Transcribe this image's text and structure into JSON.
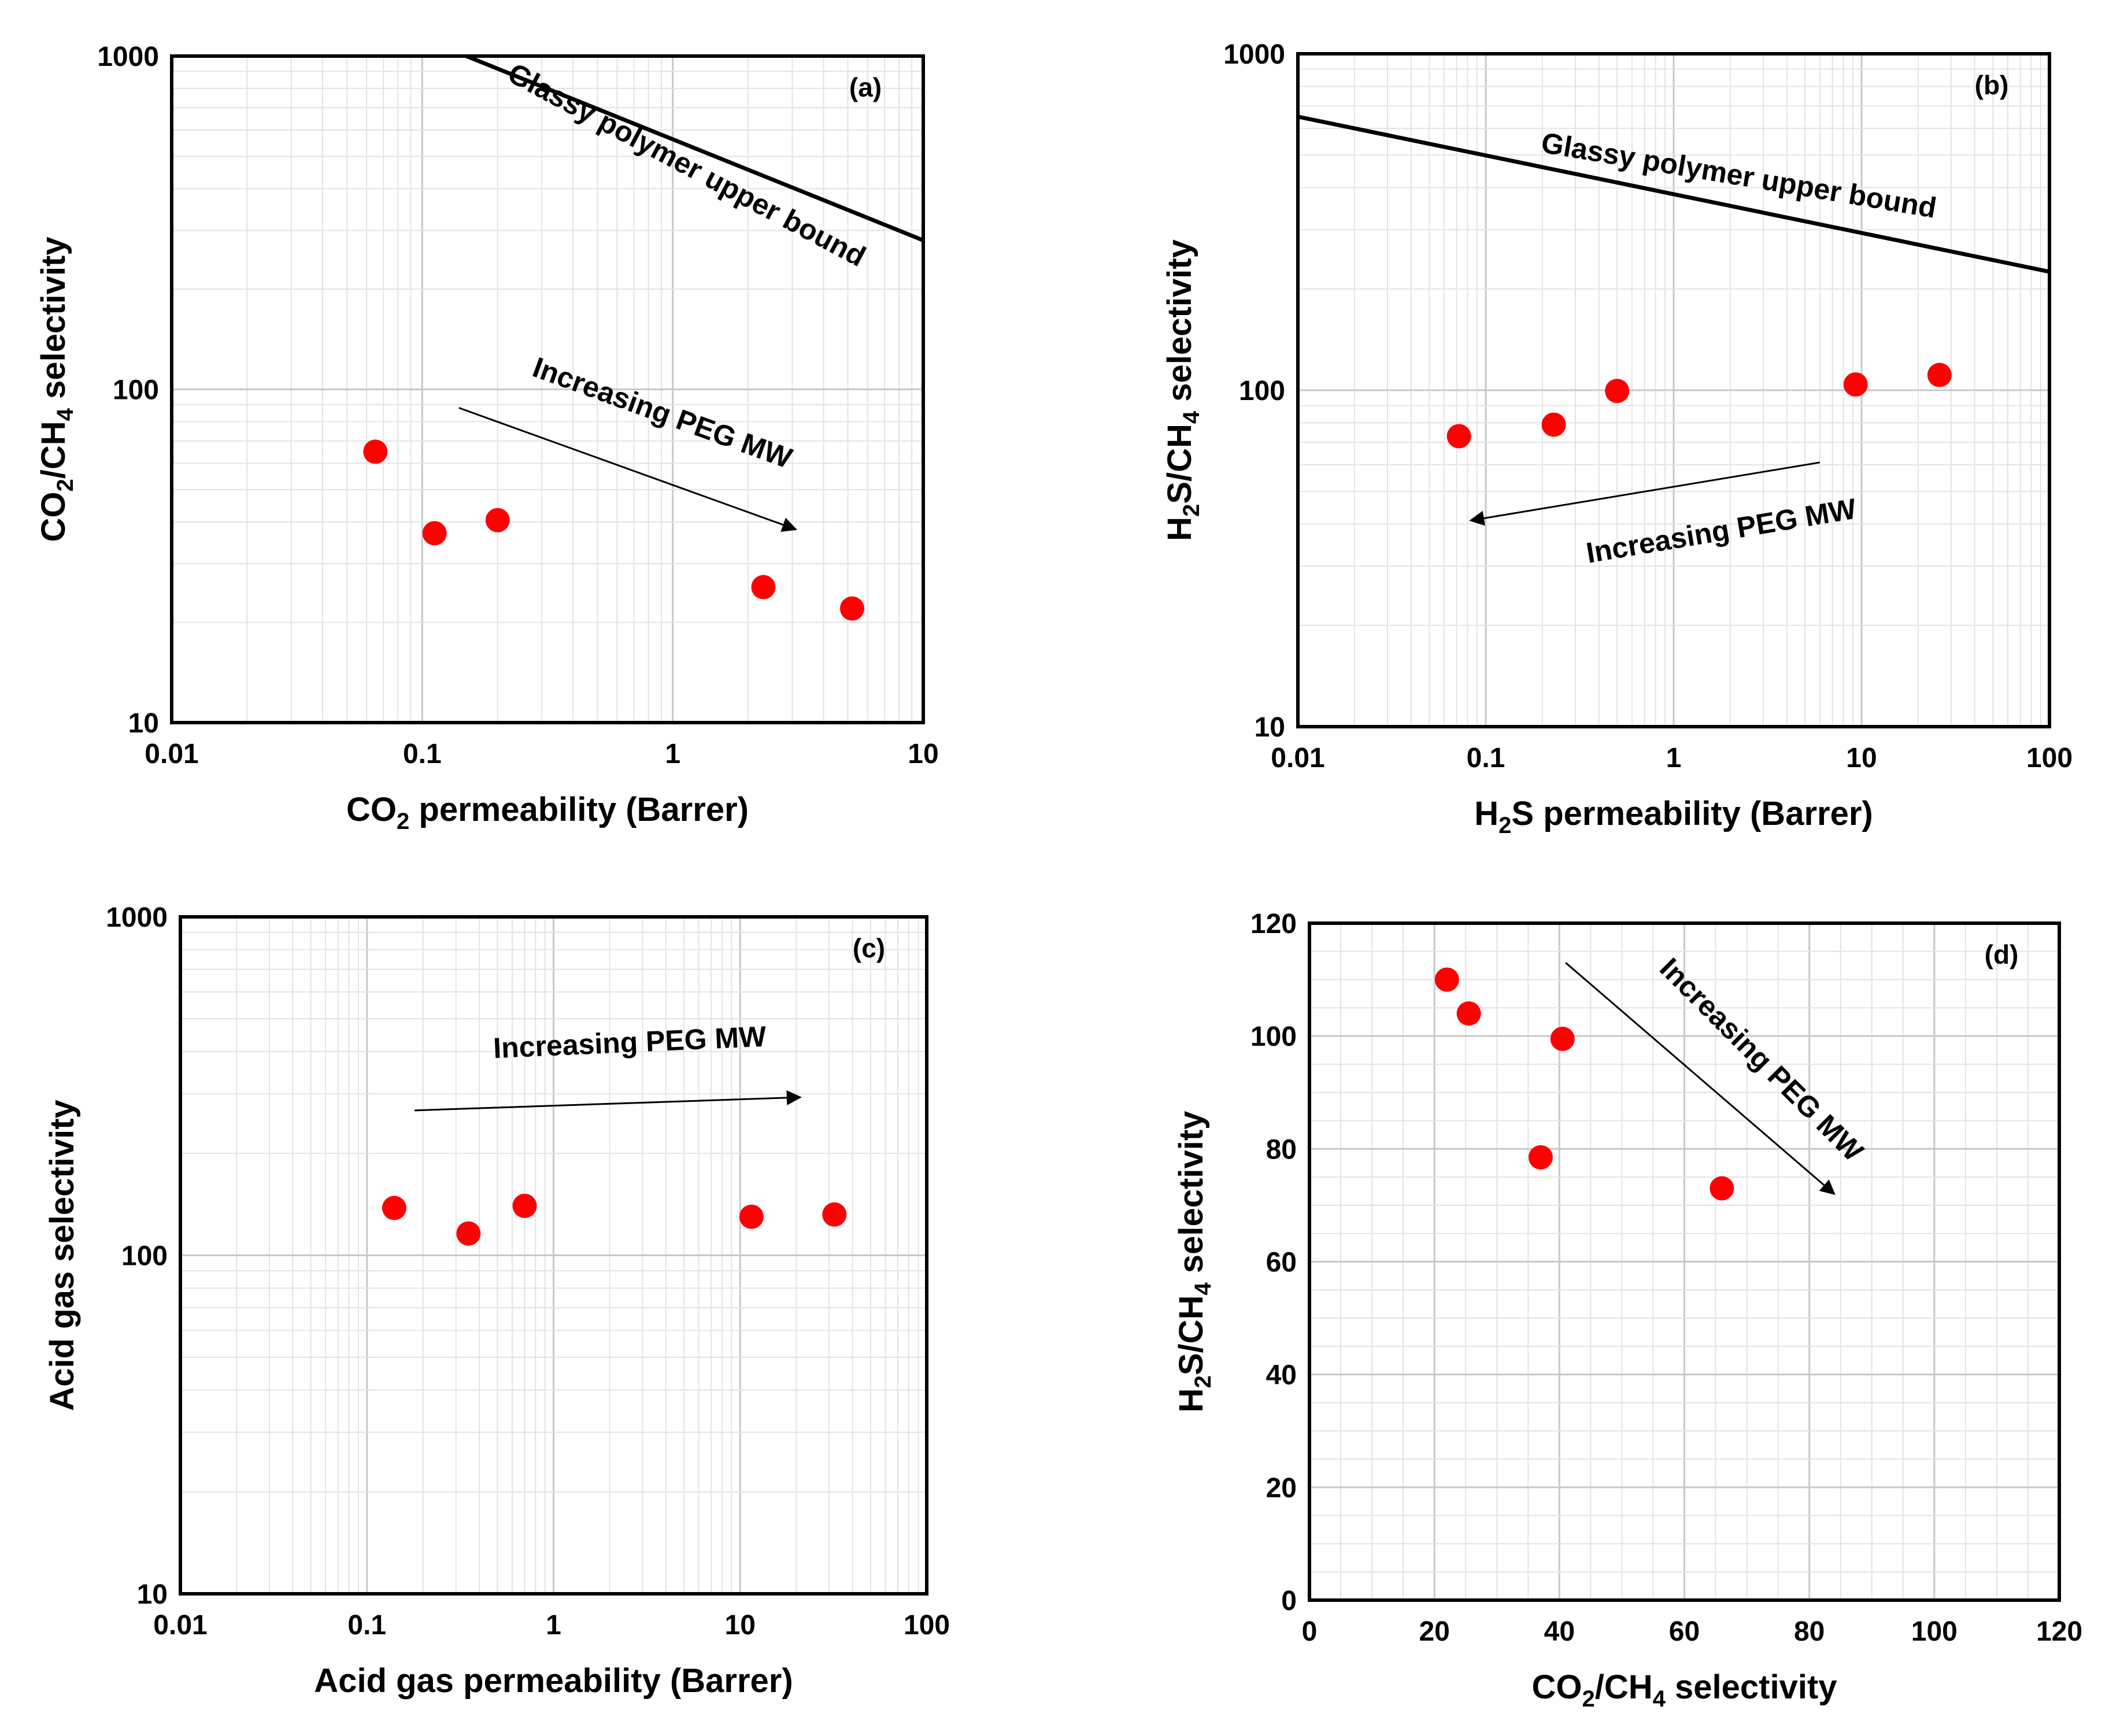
{
  "chart_data": [
    {
      "id": "a",
      "type": "scatter",
      "panel_label": "(a)",
      "xlabel": {
        "pre": "CO",
        "sub": "2",
        "post": " permeability (Barrer)"
      },
      "ylabel": {
        "parts": [
          [
            "CO",
            ""
          ],
          [
            "2",
            "sub"
          ],
          [
            "/CH",
            ""
          ],
          [
            "4",
            "sub"
          ],
          [
            " selectivity",
            ""
          ]
        ]
      },
      "xscale": "log",
      "yscale": "log",
      "xlim": [
        0.01,
        10
      ],
      "ylim": [
        10,
        1000
      ],
      "xticks": [
        "0.01",
        "0.1",
        "1",
        "10"
      ],
      "yticks": [
        "10",
        "100",
        "1000"
      ],
      "points": [
        [
          0.065,
          65
        ],
        [
          0.112,
          37
        ],
        [
          0.2,
          40.5
        ],
        [
          2.3,
          25.5
        ],
        [
          5.2,
          22
        ]
      ],
      "upper_bound": {
        "label": "Glassy polymer upper bound",
        "from": [
          0.15,
          1000
        ],
        "to": [
          10,
          280
        ]
      },
      "trend": {
        "label": "Increasing PEG MW",
        "from": [
          0.14,
          88
        ],
        "to": [
          3.1,
          38
        ]
      },
      "grid": true
    },
    {
      "id": "b",
      "type": "scatter",
      "panel_label": "(b)",
      "xlabel": {
        "pre": "H",
        "sub": "2",
        "post": "S permeability (Barrer)"
      },
      "ylabel": {
        "parts": [
          [
            "H",
            ""
          ],
          [
            "2",
            "sub"
          ],
          [
            "S/CH",
            ""
          ],
          [
            "4",
            "sub"
          ],
          [
            " selectivity",
            ""
          ]
        ]
      },
      "xscale": "log",
      "yscale": "log",
      "xlim": [
        0.01,
        100
      ],
      "ylim": [
        10,
        1000
      ],
      "xticks": [
        "0.01",
        "0.1",
        "1",
        "10",
        "100"
      ],
      "yticks": [
        "10",
        "100",
        "1000"
      ],
      "points": [
        [
          0.072,
          73
        ],
        [
          0.23,
          79
        ],
        [
          0.5,
          99.5
        ],
        [
          9.3,
          104
        ],
        [
          26,
          111
        ]
      ],
      "upper_bound": {
        "label": "Glassy polymer upper bound",
        "from": [
          0.01,
          650
        ],
        "to": [
          100,
          225
        ]
      },
      "trend": {
        "label": "Increasing PEG MW",
        "from": [
          6,
          61
        ],
        "to": [
          0.083,
          41
        ]
      },
      "grid": true
    },
    {
      "id": "c",
      "type": "scatter",
      "panel_label": "(c)",
      "xlabel": {
        "pre": "Acid gas permeability (Barrer)",
        "sub": "",
        "post": ""
      },
      "ylabel": {
        "parts": [
          [
            "Acid gas selectivity",
            ""
          ]
        ]
      },
      "xscale": "log",
      "yscale": "log",
      "xlim": [
        0.01,
        100
      ],
      "ylim": [
        10,
        1000
      ],
      "xticks": [
        "0.01",
        "0.1",
        "1",
        "10",
        "100"
      ],
      "yticks": [
        "10",
        "100",
        "1000"
      ],
      "points": [
        [
          0.14,
          138
        ],
        [
          0.35,
          116
        ],
        [
          0.7,
          140
        ],
        [
          11.5,
          130
        ],
        [
          32,
          132
        ]
      ],
      "trend": {
        "label": "Increasing PEG MW",
        "from": [
          0.18,
          268
        ],
        "to": [
          21,
          293
        ]
      },
      "grid": true
    },
    {
      "id": "d",
      "type": "scatter",
      "panel_label": "(d)",
      "xlabel": {
        "pre": "CO",
        "sub": "2",
        "post": "/CH",
        "sub2": "4",
        "post2": " selectivity"
      },
      "ylabel": {
        "parts": [
          [
            "H",
            ""
          ],
          [
            "2",
            "sub"
          ],
          [
            "S/CH",
            ""
          ],
          [
            "4",
            "sub"
          ],
          [
            " selectivity",
            ""
          ]
        ]
      },
      "xscale": "linear",
      "yscale": "linear",
      "xlim": [
        0,
        120
      ],
      "ylim": [
        0,
        120
      ],
      "xticks": [
        "0",
        "20",
        "40",
        "60",
        "80",
        "100",
        "120"
      ],
      "yticks": [
        "0",
        "20",
        "40",
        "60",
        "80",
        "100",
        "120"
      ],
      "points": [
        [
          22,
          110
        ],
        [
          25.5,
          104
        ],
        [
          40.5,
          99.5
        ],
        [
          37,
          78.5
        ],
        [
          66,
          73
        ]
      ],
      "trend": {
        "label": "Increasing PEG MW",
        "from": [
          41,
          113
        ],
        "to": [
          84,
          72
        ]
      },
      "grid": true
    }
  ]
}
